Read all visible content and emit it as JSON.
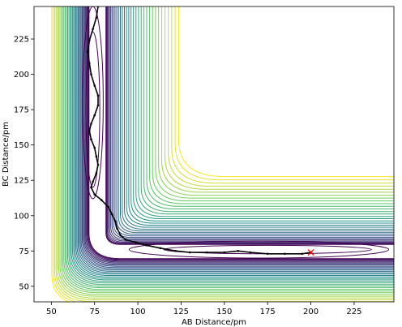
{
  "chart_data": {
    "type": "contour",
    "xlabel": "AB Distance/pm",
    "ylabel": "BC Distance/pm",
    "xlim": [
      40,
      248
    ],
    "ylim": [
      39,
      248
    ],
    "xticks": [
      50,
      75,
      100,
      125,
      150,
      175,
      200,
      225
    ],
    "yticks": [
      50,
      75,
      100,
      125,
      150,
      175,
      200,
      225
    ],
    "colormap": [
      "#440154",
      "#3b528b",
      "#21918c",
      "#5ec962",
      "#fde725"
    ],
    "trajectory_color": "#000000",
    "end_marker": {
      "x": 200,
      "y": 74,
      "symbol": "x",
      "color": "#ff0000"
    },
    "trajectory": [
      [
        77,
        248
      ],
      [
        76,
        240
      ],
      [
        74,
        232
      ],
      [
        72,
        224
      ],
      [
        71,
        216
      ],
      [
        72,
        208
      ],
      [
        73,
        200
      ],
      [
        75,
        192
      ],
      [
        77,
        185
      ],
      [
        77,
        178
      ],
      [
        75,
        171
      ],
      [
        73,
        165
      ],
      [
        72,
        160
      ],
      [
        73,
        154
      ],
      [
        75,
        148
      ],
      [
        76,
        142
      ],
      [
        77,
        136
      ],
      [
        76,
        130
      ],
      [
        74,
        124
      ],
      [
        73,
        120
      ],
      [
        75,
        115
      ],
      [
        79,
        111
      ],
      [
        83,
        106
      ],
      [
        85,
        101
      ],
      [
        87,
        96
      ],
      [
        88,
        91
      ],
      [
        90,
        86
      ],
      [
        93,
        83
      ],
      [
        99,
        81
      ],
      [
        105,
        79
      ],
      [
        113,
        77
      ],
      [
        122,
        75
      ],
      [
        130,
        74
      ],
      [
        140,
        74
      ],
      [
        150,
        74
      ],
      [
        158,
        75
      ],
      [
        165,
        74
      ],
      [
        175,
        73
      ],
      [
        185,
        73
      ],
      [
        195,
        73
      ],
      [
        200,
        74
      ]
    ]
  }
}
